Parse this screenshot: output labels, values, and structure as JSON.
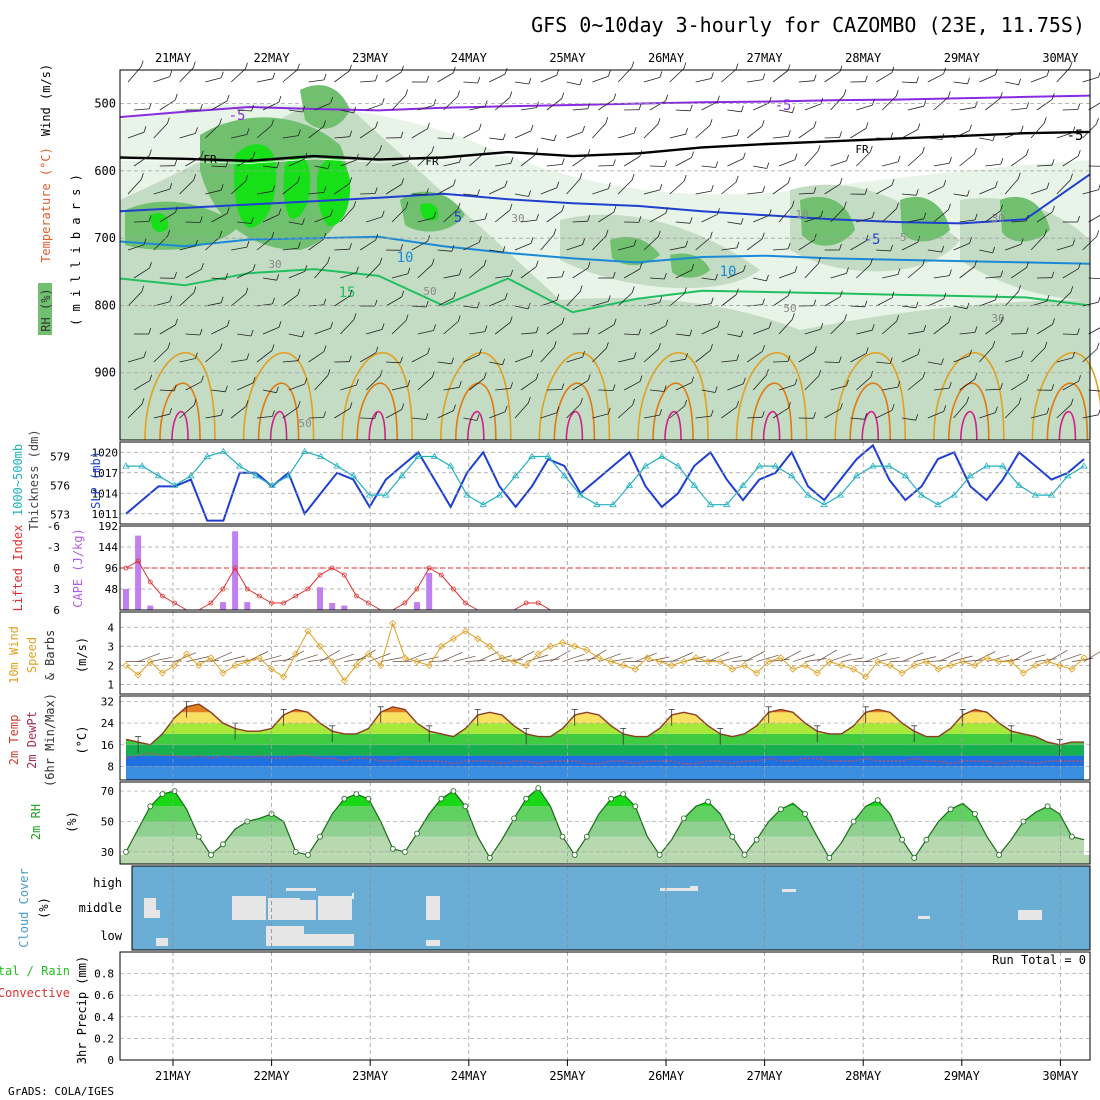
{
  "title": "GFS 0~10day 3-hourly for CAZOMBO (23E, 11.75S)",
  "footer": "GrADS: COLA/IGES",
  "dates": [
    "21MAY",
    "22MAY",
    "23MAY",
    "24MAY",
    "25MAY",
    "26MAY",
    "27MAY",
    "28MAY",
    "29MAY",
    "30MAY"
  ],
  "colors": {
    "grid": "#a0a0a0",
    "purple": "#8a2be2",
    "blue": "#1f3fd0",
    "cyan": "#20b0c0",
    "green": "#20c060",
    "orange": "#e0a020",
    "red": "#e03030",
    "magenta": "#d0208a",
    "rh_light": "#e8f4e8",
    "rh_mid": "#c4dcc4",
    "rh_dark": "#70c070",
    "rh_bright": "#18e018",
    "cloud": "#6aaed6",
    "cloud_fill": "#e6e6e6"
  },
  "chart_data": [
    {
      "name": "upper-air",
      "type": "heatmap",
      "ylabel_parts": {
        "rh": "RH (%)",
        "temp": "Temperature (°C)",
        "wind": "Wind (m/s)",
        "unit": "( m i l l i b a r s )"
      },
      "yticks": [
        500,
        600,
        700,
        800,
        900
      ],
      "ylim": [
        1000,
        450
      ],
      "contour_labels": [
        "-5",
        "-5",
        "-5",
        "FR",
        "FR",
        "FR",
        "5",
        "-5",
        "10",
        "10",
        "15",
        "30",
        "50",
        "50",
        "30",
        "10",
        "-5",
        "30",
        "50",
        "30"
      ],
      "freezing_level": [
        580,
        582,
        585,
        578,
        583,
        580,
        572,
        578,
        574,
        565,
        560,
        556,
        552,
        548,
        544,
        542
      ],
      "minus5_isotherm": [
        520,
        512,
        505,
        508,
        510,
        506,
        504,
        502,
        500,
        498,
        497,
        495,
        494,
        492,
        490,
        488
      ],
      "five_isotherm": [
        660,
        655,
        650,
        645,
        640,
        634,
        642,
        648,
        652,
        660,
        666,
        672,
        676,
        678,
        672,
        605
      ],
      "ten_isotherm": [
        705,
        712,
        702,
        700,
        698,
        712,
        722,
        730,
        736,
        728,
        726,
        730,
        732,
        734,
        736,
        738
      ],
      "fifteen_isotherm": [
        760,
        770,
        752,
        746,
        756,
        800,
        760,
        810,
        790,
        778,
        780,
        782,
        784,
        786,
        788,
        800
      ]
    },
    {
      "name": "thickness-slp",
      "type": "line",
      "ylabel_left": "1000~500mb Thickness (dm)",
      "ylabel_right": "SLP (mb)",
      "yticks_left": [
        "579",
        "576",
        "573"
      ],
      "yticks_right": [
        "1020",
        "1017",
        "1014",
        "1011"
      ],
      "series": [
        {
          "name": "SLP (mb)",
          "values": [
            1011,
            1013,
            1015,
            1015,
            1016,
            1010,
            1010,
            1017,
            1017,
            1015,
            1017,
            1011,
            1014,
            1017,
            1016,
            1012,
            1016,
            1018,
            1020,
            1016,
            1012,
            1017,
            1020,
            1015,
            1012,
            1015,
            1019,
            1018,
            1014,
            1016,
            1018,
            1020,
            1015,
            1012,
            1014,
            1018,
            1020,
            1016,
            1013,
            1016,
            1017,
            1020,
            1015,
            1013,
            1016,
            1019,
            1021,
            1016,
            1013,
            1015,
            1019,
            1020,
            1015,
            1013,
            1016,
            1020,
            1018,
            1016,
            1017,
            1019
          ]
        },
        {
          "name": "1000~500mb Thickness (dm)",
          "values": [
            578,
            578,
            577,
            576,
            577,
            579,
            579.5,
            578,
            577,
            576,
            577,
            579.5,
            579,
            578,
            577,
            575,
            575,
            577,
            579,
            579,
            578,
            575,
            574,
            575,
            577,
            579,
            579,
            577,
            575,
            574,
            574,
            576,
            578,
            579,
            578,
            576,
            574,
            574,
            576,
            578,
            578,
            577,
            575,
            574,
            575,
            577,
            578,
            578,
            577,
            575,
            574,
            575,
            577,
            578,
            578,
            576,
            575,
            575,
            577,
            578
          ]
        }
      ]
    },
    {
      "name": "cape-li",
      "type": "bar",
      "ylabel_left": "Lifted Index",
      "ylabel_right": "CAPE (J/kg)",
      "yticks_left": [
        "-6",
        "-3",
        "0",
        "3",
        "6"
      ],
      "yticks_right": [
        "192",
        "144",
        "96",
        "48"
      ],
      "series": [
        {
          "name": "CAPE (J/kg)",
          "values": [
            48,
            170,
            10,
            0,
            0,
            0,
            0,
            0,
            18,
            180,
            18,
            0,
            0,
            0,
            0,
            0,
            52,
            16,
            10,
            0,
            0,
            0,
            0,
            0,
            18,
            85,
            0,
            0,
            0,
            0,
            0,
            0,
            0,
            0,
            0,
            0,
            0,
            0,
            0,
            0,
            0,
            0,
            0,
            0,
            0,
            0,
            0,
            0,
            0,
            0,
            0,
            0,
            0,
            0,
            0,
            0,
            0,
            0,
            0,
            0,
            0,
            0,
            0,
            0,
            0,
            0,
            0,
            0,
            0,
            0,
            0,
            0,
            0,
            0,
            0,
            0,
            0,
            0,
            0,
            0
          ]
        },
        {
          "name": "Lifted Index",
          "values": [
            0,
            -1,
            2,
            4,
            5,
            6,
            6,
            5,
            3,
            0,
            3,
            4,
            5,
            5,
            4,
            3,
            1,
            0,
            1,
            4,
            5,
            6,
            6,
            5,
            3,
            0,
            1,
            3,
            5,
            6,
            6,
            6,
            6,
            5,
            5,
            6,
            6,
            6,
            6,
            6,
            6,
            6,
            6,
            6,
            6,
            6,
            6,
            6,
            6,
            6,
            6,
            6,
            6,
            6,
            6,
            6,
            6,
            6,
            6,
            6,
            6,
            6,
            6,
            6,
            6,
            6,
            6,
            6,
            6,
            6,
            6,
            6,
            6,
            6,
            6,
            6,
            6,
            6,
            6,
            6
          ]
        }
      ]
    },
    {
      "name": "wind10m",
      "type": "line",
      "ylabel": "10m Wind Speed & Barbs (m/s)",
      "ylabel_parts": {
        "a": "10m Wind",
        "b": "Speed",
        "c": "& Barbs",
        "d": "(m/s)"
      },
      "yticks": [
        "4",
        "3",
        "2",
        "1"
      ],
      "series": [
        {
          "name": "10m Wind Speed",
          "values": [
            2,
            1.5,
            2.2,
            1.6,
            2,
            2.6,
            2,
            2.4,
            1.6,
            2,
            2.2,
            2.4,
            1.8,
            1.4,
            2.6,
            3.8,
            3,
            2.2,
            1.2,
            2,
            2.6,
            2,
            4.2,
            2.4,
            2.2,
            2,
            3,
            3.4,
            3.8,
            3.4,
            3,
            2.4,
            2.2,
            2,
            2.6,
            3,
            3.2,
            3,
            2.8,
            2.4,
            2.2,
            2,
            1.8,
            2.4,
            2.2,
            2,
            2.2,
            2.4,
            2.2,
            2.2,
            1.8,
            2,
            1.6,
            2.2,
            2.4,
            1.8,
            2,
            1.6,
            2.2,
            2,
            1.8,
            1.4,
            2.2,
            2,
            1.6,
            2,
            2.2,
            1.8,
            2,
            2.2,
            2,
            2.4,
            2.2,
            2.2,
            1.6,
            2,
            2.2,
            2,
            1.8,
            2.4
          ]
        }
      ]
    },
    {
      "name": "temp2m",
      "type": "area",
      "ylabel_parts": {
        "a": "2m Temp",
        "b": "2m DewPt",
        "c": "(6hr Min/Max)",
        "d": "(°C)"
      },
      "yticks": [
        "32",
        "24",
        "16",
        "8"
      ],
      "series": [
        {
          "name": "2m Temp",
          "values": [
            18,
            17,
            16,
            20,
            26,
            30,
            31,
            28,
            24,
            22,
            21,
            21,
            22,
            27,
            29,
            28,
            24,
            21,
            20,
            20,
            22,
            28,
            30,
            29,
            24,
            21,
            20,
            19,
            22,
            27,
            28,
            27,
            23,
            20,
            19,
            19,
            22,
            27,
            28,
            27,
            23,
            20,
            19,
            19,
            22,
            27,
            28,
            27,
            23,
            20,
            19,
            20,
            23,
            28,
            29,
            28,
            24,
            21,
            20,
            20,
            23,
            28,
            29,
            28,
            24,
            21,
            19,
            19,
            22,
            27,
            29,
            28,
            24,
            21,
            20,
            19,
            17,
            16,
            17,
            17
          ]
        },
        {
          "name": "2m DewPt",
          "values": [
            11,
            12,
            13,
            12,
            12,
            11,
            12,
            11,
            12,
            11,
            11,
            12,
            11,
            11,
            12,
            12,
            11,
            11,
            10,
            11,
            11,
            10,
            10,
            11,
            10,
            10,
            10,
            9,
            10,
            10,
            10,
            9,
            10,
            10,
            9,
            10,
            10,
            10,
            9,
            9,
            10,
            10,
            9,
            10,
            10,
            10,
            9,
            9,
            10,
            10,
            9,
            10,
            10,
            11,
            10,
            10,
            11,
            11,
            10,
            10,
            10,
            11,
            10,
            10,
            10,
            11,
            10,
            10,
            9,
            10,
            10,
            10,
            9,
            10,
            10,
            9,
            10,
            10,
            10,
            10
          ]
        }
      ]
    },
    {
      "name": "rh2m",
      "type": "area",
      "ylabel": "2m RH (%)",
      "ylabel_parts": {
        "a": "2m RH",
        "b": "(%)"
      },
      "yticks": [
        "70",
        "50",
        "30"
      ],
      "series": [
        {
          "name": "2m RH",
          "values": [
            30,
            45,
            60,
            68,
            70,
            58,
            40,
            28,
            35,
            45,
            50,
            52,
            55,
            50,
            30,
            28,
            40,
            55,
            65,
            68,
            65,
            50,
            32,
            30,
            42,
            55,
            65,
            70,
            60,
            40,
            26,
            38,
            52,
            65,
            72,
            60,
            40,
            28,
            40,
            55,
            65,
            68,
            60,
            40,
            28,
            38,
            52,
            60,
            63,
            55,
            40,
            28,
            38,
            50,
            58,
            62,
            55,
            40,
            26,
            36,
            50,
            60,
            64,
            55,
            38,
            26,
            38,
            50,
            58,
            62,
            55,
            40,
            28,
            38,
            50,
            56,
            60,
            55,
            40,
            38
          ]
        }
      ]
    },
    {
      "name": "cloud-cover",
      "type": "heatmap",
      "ylabel": "Cloud Cover (%)",
      "ylabel_parts": {
        "a": "Cloud Cover",
        "b": "(%)"
      },
      "levels": [
        "high",
        "middle",
        "low"
      ]
    },
    {
      "name": "precip",
      "type": "bar",
      "ylabel_parts": {
        "a": "Total / Rain",
        "b": "Convective",
        "c": "3hr Precip (mm)"
      },
      "yticks": [
        "0.8",
        "0.6",
        "0.4",
        "0.2",
        "0"
      ],
      "annotation": "Run Total = 0",
      "values": []
    }
  ]
}
